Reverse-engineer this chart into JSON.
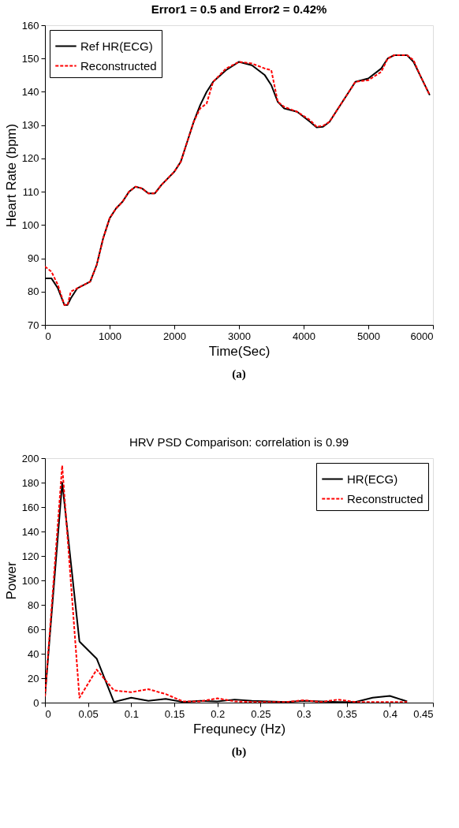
{
  "chart_data": [
    {
      "type": "line",
      "title": "Error1 = 0.5 and Error2 = 0.42%",
      "xlabel": "Time(Sec)",
      "ylabel": "Heart Rate (bpm)",
      "xlim": [
        0,
        6000
      ],
      "ylim": [
        70,
        160
      ],
      "xticks": [
        0,
        1000,
        2000,
        3000,
        4000,
        5000,
        6000
      ],
      "yticks": [
        70,
        80,
        90,
        100,
        110,
        120,
        130,
        140,
        150,
        160
      ],
      "grid": false,
      "legend": "top left",
      "annotations": [
        "(a)"
      ],
      "series": [
        {
          "name": "Ref HR(ECG)",
          "color": "#000000",
          "line_style": "solid",
          "x": [
            0,
            100,
            200,
            300,
            350,
            400,
            500,
            600,
            700,
            800,
            900,
            1000,
            1100,
            1200,
            1300,
            1400,
            1500,
            1600,
            1700,
            1800,
            2000,
            2100,
            2200,
            2300,
            2400,
            2500,
            2600,
            2800,
            3000,
            3200,
            3400,
            3500,
            3600,
            3700,
            3900,
            4100,
            4200,
            4300,
            4400,
            4500,
            4700,
            4800,
            5000,
            5200,
            5300,
            5400,
            5600,
            5700,
            5800,
            5950
          ],
          "values": [
            84,
            84,
            81,
            76,
            76,
            78,
            81,
            82,
            83,
            88,
            96,
            102,
            105,
            107,
            110,
            111.5,
            111,
            109.5,
            109.5,
            112,
            116,
            119,
            125,
            131,
            136,
            140,
            143,
            146.5,
            149,
            148,
            145,
            142,
            137,
            135,
            134,
            131,
            129.3,
            129.5,
            131,
            134,
            140,
            143,
            144,
            147,
            150,
            151,
            151,
            149,
            145,
            139
          ]
        },
        {
          "name": "Reconstructed",
          "color": "#ff0000",
          "line_style": "dashed",
          "x": [
            0,
            100,
            200,
            300,
            350,
            400,
            500,
            600,
            700,
            800,
            900,
            1000,
            1100,
            1200,
            1300,
            1400,
            1500,
            1600,
            1700,
            1800,
            2000,
            2100,
            2200,
            2300,
            2400,
            2500,
            2600,
            2800,
            3000,
            3200,
            3400,
            3500,
            3600,
            3700,
            3900,
            4100,
            4200,
            4300,
            4400,
            4500,
            4700,
            4800,
            5000,
            5200,
            5300,
            5400,
            5600,
            5700,
            5800,
            5950
          ],
          "values": [
            87.5,
            86,
            82,
            76,
            76,
            80,
            81,
            82,
            83,
            88,
            96,
            102,
            105,
            107,
            110,
            111.5,
            111,
            109.5,
            109.5,
            112,
            116,
            119,
            125,
            131,
            135,
            136.5,
            143,
            147,
            149,
            148.5,
            147,
            146.5,
            137,
            135.5,
            134,
            131.5,
            129.5,
            129.8,
            131,
            134,
            140,
            143,
            143.5,
            146,
            150,
            151,
            151,
            149.5,
            145,
            139
          ]
        }
      ]
    },
    {
      "type": "line",
      "title": "HRV PSD Comparison: correlation is 0.99",
      "xlabel": "Frequnecy (Hz)",
      "ylabel": "Power",
      "xlim": [
        0,
        0.45
      ],
      "ylim": [
        0,
        200
      ],
      "xticks": [
        0,
        0.05,
        0.1,
        0.15,
        0.2,
        0.25,
        0.3,
        0.35,
        0.4,
        0.45
      ],
      "yticks": [
        0,
        20,
        40,
        60,
        80,
        100,
        120,
        140,
        160,
        180,
        200
      ],
      "grid": false,
      "legend": "top right",
      "annotations": [
        "(b)"
      ],
      "series": [
        {
          "name": "HR(ECG)",
          "color": "#000000",
          "line_style": "solid",
          "x": [
            0,
            0.02,
            0.04,
            0.06,
            0.08,
            0.1,
            0.12,
            0.14,
            0.16,
            0.18,
            0.2,
            0.22,
            0.24,
            0.26,
            0.28,
            0.3,
            0.32,
            0.34,
            0.36,
            0.38,
            0.4,
            0.42
          ],
          "values": [
            5,
            180,
            50,
            36,
            0.5,
            4,
            1.5,
            3,
            0.5,
            1.5,
            1,
            2.5,
            1.5,
            1,
            0.5,
            1.5,
            1,
            0.5,
            0.5,
            4,
            5.5,
            1
          ]
        },
        {
          "name": "Reconstructed",
          "color": "#ff0000",
          "line_style": "dashed",
          "x": [
            0,
            0.02,
            0.04,
            0.06,
            0.08,
            0.1,
            0.12,
            0.14,
            0.16,
            0.18,
            0.2,
            0.22,
            0.24,
            0.26,
            0.28,
            0.3,
            0.32,
            0.34,
            0.36,
            0.38,
            0.4,
            0.42
          ],
          "values": [
            5,
            194,
            4,
            27,
            10,
            8.5,
            11,
            7,
            1,
            1,
            3.5,
            1,
            0.5,
            0.5,
            0.5,
            2,
            0.5,
            2.5,
            0.5,
            0.5,
            0.5,
            0.5
          ]
        }
      ]
    }
  ]
}
